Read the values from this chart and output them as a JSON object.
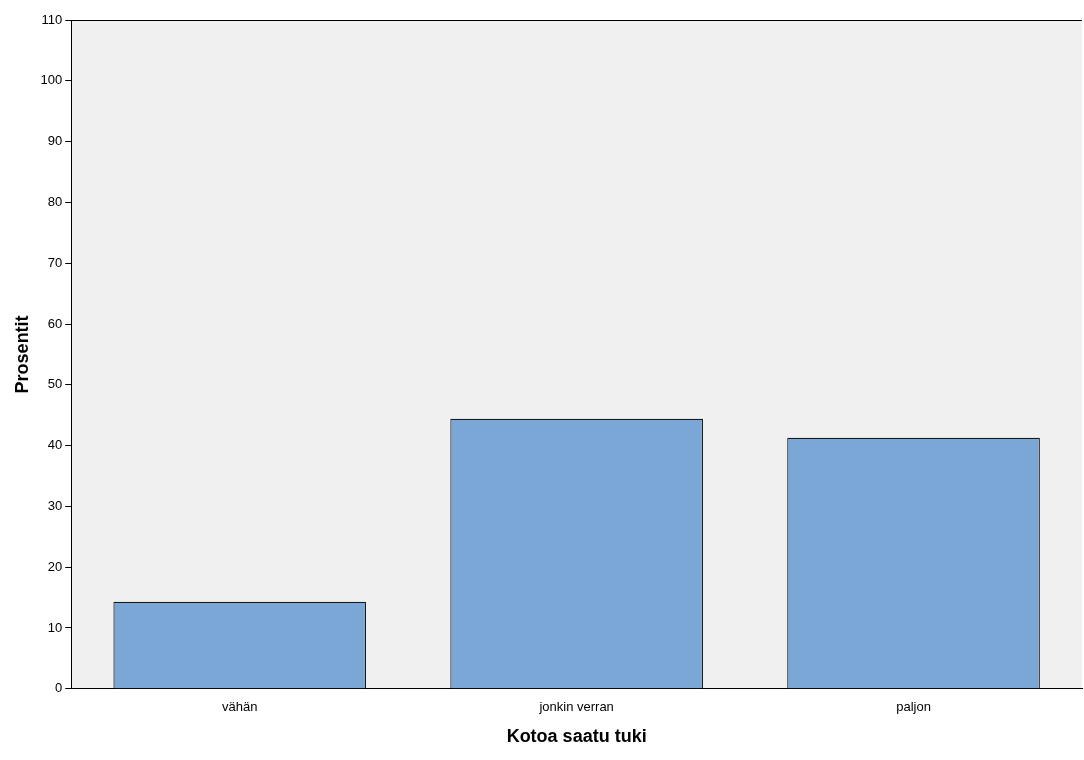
{
  "chart_data": {
    "type": "bar",
    "xlabel": "Kotoa saatu tuki",
    "ylabel": "Prosentit",
    "categories": [
      "vähän",
      "jonkin verran",
      "paljon"
    ],
    "values": [
      14.3,
      44.4,
      41.3
    ],
    "color": "#7aa7d6",
    "ylim": [
      0,
      110
    ],
    "yticks": [
      0,
      10,
      20,
      30,
      40,
      50,
      60,
      70,
      80,
      90,
      100,
      110
    ],
    "grid": false,
    "legend": false
  }
}
